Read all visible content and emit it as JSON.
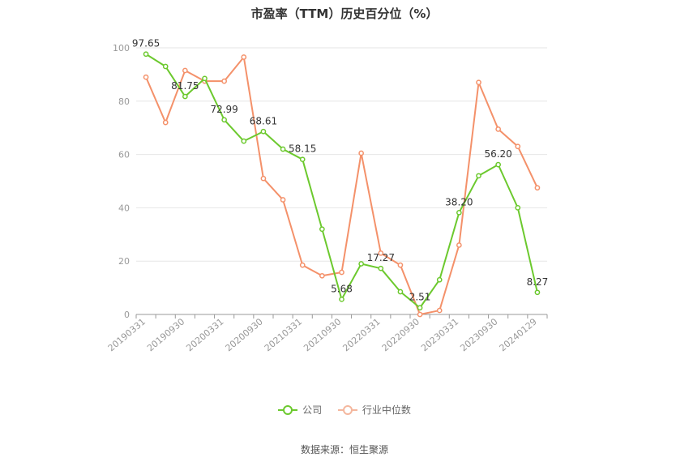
{
  "chart_data": {
    "type": "line",
    "title": "市盈率（TTM）历史百分位（%）",
    "xlabel": "",
    "ylabel": "",
    "ylim": [
      0,
      100
    ],
    "yticks": [
      0,
      20,
      40,
      60,
      80,
      100
    ],
    "grid": true,
    "legend_position": "bottom",
    "x": [
      "20190331",
      "20190630",
      "20190930",
      "20191231",
      "20200331",
      "20200630",
      "20200930",
      "20201231",
      "20210331",
      "20210630",
      "20210930",
      "20211231",
      "20220331",
      "20220630",
      "20220930",
      "20221231",
      "20230331",
      "20230630",
      "20230930",
      "20231231",
      "20240129"
    ],
    "xtick_labels": [
      "20190331",
      "20190930",
      "20200331",
      "20200930",
      "20210331",
      "20210930",
      "20220331",
      "20220930",
      "20230331",
      "20230930",
      "20240129"
    ],
    "series": [
      {
        "name": "公司",
        "color": "#6cc92e",
        "values": [
          97.65,
          93.0,
          81.75,
          88.5,
          72.99,
          65.0,
          68.61,
          62.0,
          58.15,
          32.0,
          5.68,
          19.0,
          17.27,
          8.5,
          2.51,
          13.0,
          38.2,
          52.0,
          56.2,
          40.0,
          8.27
        ],
        "labels": {
          "0": "97.65",
          "2": "81.75",
          "4": "72.99",
          "6": "68.61",
          "8": "58.15",
          "10": "5.68",
          "12": "17.27",
          "14": "2.51",
          "16": "38.20",
          "18": "56.20",
          "20": "8.27"
        }
      },
      {
        "name": "行业中位数",
        "color": "#f4916a",
        "values": [
          89.0,
          72.0,
          91.5,
          87.5,
          87.5,
          96.5,
          51.0,
          43.0,
          18.5,
          14.5,
          15.8,
          60.5,
          23.0,
          18.5,
          0.0,
          1.5,
          26.0,
          87.0,
          69.5,
          63.0,
          47.5
        ]
      }
    ]
  },
  "legend": {
    "company": "公司",
    "industry": "行业中位数"
  },
  "source": "数据来源：恒生聚源"
}
